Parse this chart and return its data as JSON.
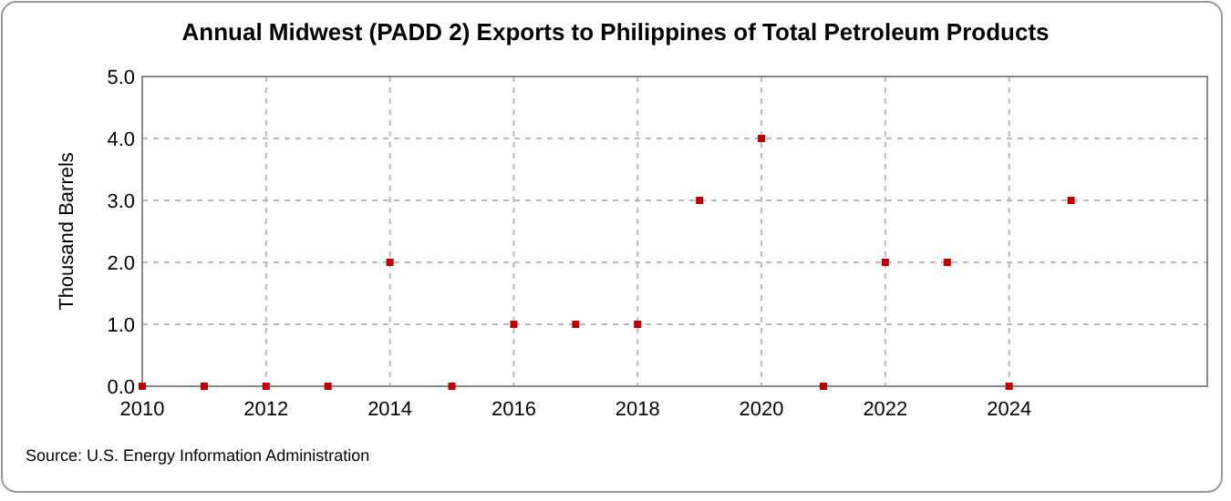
{
  "chart_data": {
    "type": "scatter",
    "title": "Annual Midwest (PADD 2) Exports to Philippines of Total Petroleum Products",
    "ylabel": "Thousand Barrels",
    "x": [
      2010,
      2011,
      2012,
      2013,
      2014,
      2015,
      2016,
      2017,
      2018,
      2019,
      2020,
      2021,
      2022,
      2023,
      2024,
      2025
    ],
    "values": [
      0,
      0,
      0,
      0,
      2,
      0,
      1,
      1,
      1,
      3,
      4,
      0,
      2,
      2,
      0,
      3
    ],
    "color": "#c00000",
    "marker": "square",
    "xlim": [
      2010,
      2027.2
    ],
    "xticks": [
      2010,
      2012,
      2014,
      2016,
      2018,
      2020,
      2022,
      2024
    ],
    "ylim": [
      0,
      5
    ],
    "yticks": [
      {
        "value": 0,
        "label": "0.0"
      },
      {
        "value": 1,
        "label": "1.0"
      },
      {
        "value": 2,
        "label": "2.0"
      },
      {
        "value": 3,
        "label": "3.0"
      },
      {
        "value": 4,
        "label": "4.0"
      },
      {
        "value": 5,
        "label": "5.0"
      }
    ],
    "grid": true,
    "annotations": [
      "Source: U.S. Energy Information Administration"
    ]
  }
}
